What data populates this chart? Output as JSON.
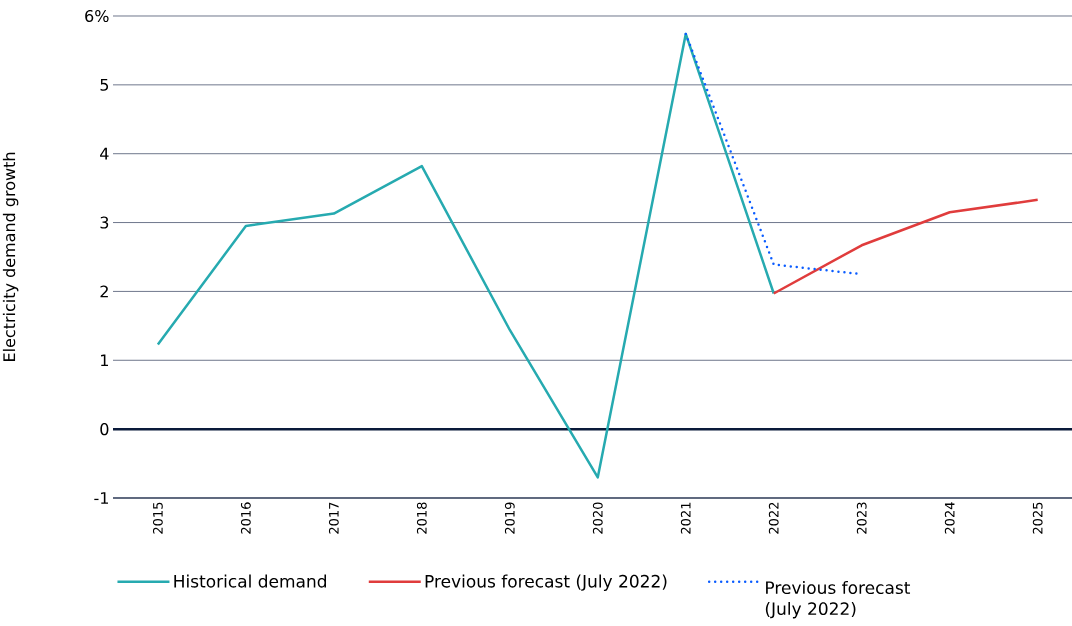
{
  "chart_data": {
    "type": "line",
    "ylabel": "Electricity demand growth",
    "categories": [
      "2015",
      "2016",
      "2017",
      "2018",
      "2019",
      "2020",
      "2021",
      "2022",
      "2023",
      "2024",
      "2025"
    ],
    "series": [
      {
        "name": "Historical demand",
        "color": "#26aab0",
        "line_style": "solid",
        "values": [
          1.23,
          2.95,
          3.13,
          3.82,
          1.44,
          -0.7,
          5.74,
          1.97,
          null,
          null,
          null
        ]
      },
      {
        "name": "Previous forecast (July 2022)",
        "color": "#e03c3c",
        "line_style": "solid",
        "values": [
          null,
          null,
          null,
          null,
          null,
          null,
          null,
          1.97,
          2.67,
          3.15,
          3.33
        ]
      },
      {
        "name": "Previous forecast (July 2022)",
        "color": "#0a5cff",
        "line_style": "dotted",
        "values": [
          null,
          null,
          null,
          null,
          null,
          null,
          5.74,
          2.39,
          2.25,
          null,
          null
        ]
      }
    ],
    "ylim": [
      -1,
      6
    ],
    "yticks": [
      -1,
      0,
      1,
      2,
      3,
      4,
      5,
      {
        "value": 6,
        "label": "6%"
      }
    ],
    "ref_lines": [
      {
        "axis": "y",
        "value": 0,
        "color": "#0a1a3a"
      }
    ],
    "grid": "y",
    "legend": "bottom",
    "marker": "none"
  }
}
